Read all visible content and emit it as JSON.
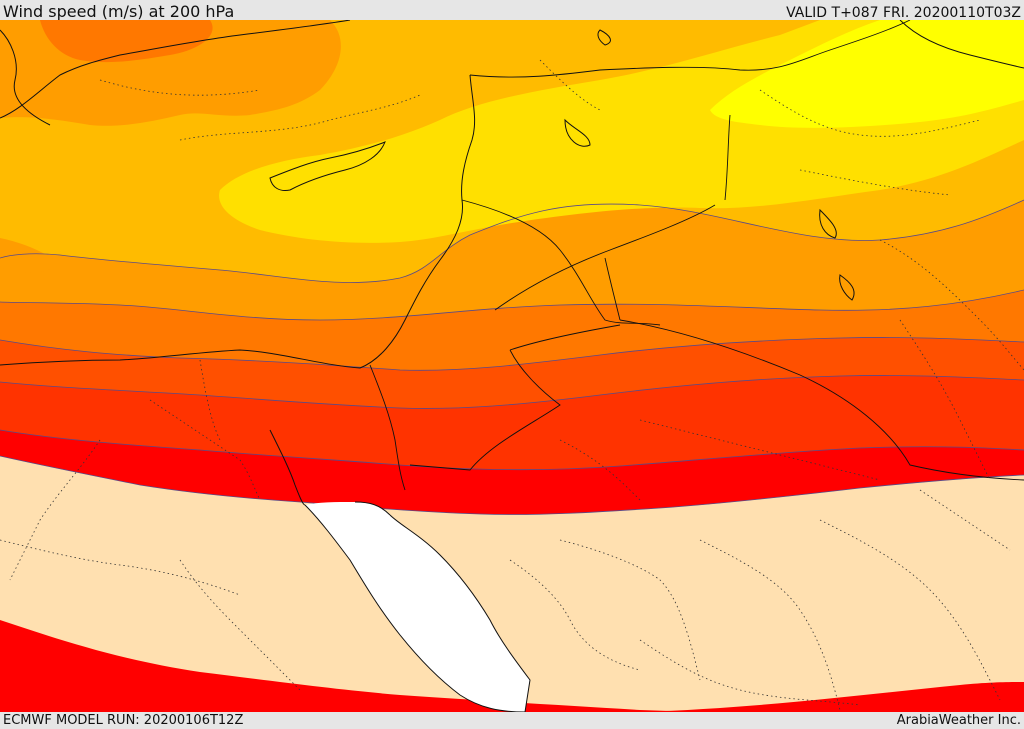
{
  "header": {
    "title": "Wind speed (m/s) at 200 hPa",
    "valid": "VALID T+087 FRI. 20200110T03Z"
  },
  "footer": {
    "model_run": "ECMWF MODEL RUN: 20200106T12Z",
    "credit": "ArabiaWeather Inc."
  },
  "map": {
    "colors": {
      "band_lightest": "#ffff00",
      "band_yellow": "#ffe000",
      "band_gold": "#ffbb00",
      "band_orange": "#ff9d00",
      "band_dark_orange": "#ff7800",
      "band_red_orange": "#ff5000",
      "band_orange_red": "#ff3300",
      "band_red": "#ff0000",
      "band_calm": "#ffe0b0",
      "sea": "#ffffff"
    }
  }
}
